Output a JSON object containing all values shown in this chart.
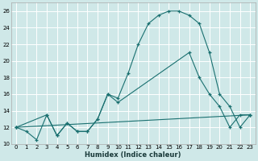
{
  "xlabel": "Humidex (Indice chaleur)",
  "bg_color": "#cfe8e8",
  "grid_color": "#ffffff",
  "line_color": "#1a7070",
  "xlim": [
    -0.5,
    23.5
  ],
  "ylim": [
    10,
    27
  ],
  "yticks": [
    10,
    12,
    14,
    16,
    18,
    20,
    22,
    24,
    26
  ],
  "xticks": [
    0,
    1,
    2,
    3,
    4,
    5,
    6,
    7,
    8,
    9,
    10,
    11,
    12,
    13,
    14,
    15,
    16,
    17,
    18,
    19,
    20,
    21,
    22,
    23
  ],
  "curve1_x": [
    0,
    1,
    2,
    3,
    4,
    5,
    6,
    7,
    8,
    9,
    10,
    11,
    12,
    13,
    14,
    15,
    16,
    17,
    18,
    19,
    20,
    21,
    22,
    23
  ],
  "curve1_y": [
    12,
    11.5,
    10.5,
    13.5,
    11,
    12.5,
    11.5,
    11.5,
    13,
    16,
    15.5,
    18.5,
    22,
    24.5,
    25.5,
    26,
    26,
    25.5,
    24.5,
    21,
    16,
    14.5,
    12,
    13.5
  ],
  "curve2_x": [
    0,
    3,
    4,
    5,
    6,
    7,
    8,
    9,
    10,
    17,
    18,
    19,
    20,
    21,
    22,
    23
  ],
  "curve2_y": [
    12,
    13.5,
    11,
    12.5,
    11.5,
    11.5,
    13,
    16,
    15,
    21,
    18,
    16,
    14.5,
    12,
    13.5,
    13.5
  ],
  "curve3_x": [
    0,
    23
  ],
  "curve3_y": [
    12,
    13.5
  ]
}
